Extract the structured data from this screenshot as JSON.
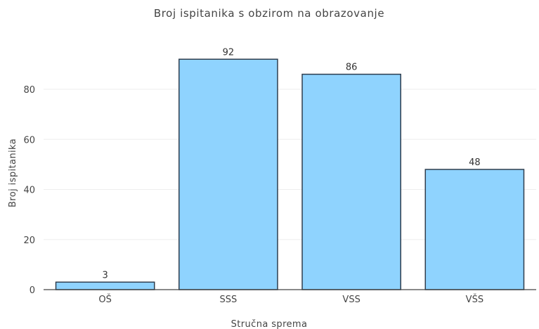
{
  "chart_data": {
    "type": "bar",
    "title": "Broj ispitanika s obzirom na obrazovanje",
    "xlabel": "Stručna sprema",
    "ylabel": "Broj ispitanika",
    "categories": [
      "OŠ",
      "SSS",
      "VSS",
      "VŠS"
    ],
    "values": [
      3,
      92,
      86,
      48
    ],
    "ylim": [
      0,
      96
    ],
    "yticks": [
      0,
      20,
      40,
      60,
      80
    ],
    "grid": true,
    "bar_color": "#8fd3fe",
    "bar_outline_color": "#2f3e4e"
  }
}
